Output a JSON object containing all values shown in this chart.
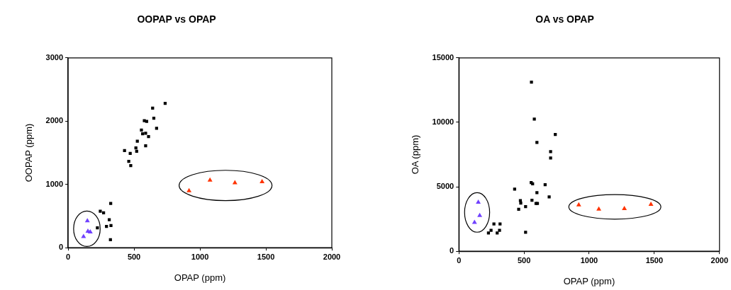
{
  "chart_data": [
    {
      "type": "scatter",
      "title": "OOPAP vs OPAP",
      "xlabel": "OPAP (ppm)",
      "ylabel": "OOPAP (ppm)",
      "xlim": [
        0,
        2000
      ],
      "xticks": [
        0,
        500,
        1000,
        1500,
        2000
      ],
      "ylim": [
        0,
        3000
      ],
      "yticks": [
        0,
        1000,
        2000,
        3000
      ],
      "grid": false,
      "legend": false,
      "series": [
        {
          "color": "#000000",
          "marker": "square",
          "x": [
            736,
            641,
            650,
            578,
            596,
            671,
            556,
            565,
            588,
            610,
            525,
            588,
            514,
            520,
            428,
            471,
            460,
            475,
            244,
            269,
            323,
            312,
            222,
            291,
            325,
            321
          ],
          "values": [
            2280,
            2205,
            2046,
            2008,
            1996,
            1887,
            1858,
            1800,
            1808,
            1757,
            1682,
            1611,
            1577,
            1523,
            1536,
            1490,
            1364,
            1297,
            577,
            552,
            699,
            443,
            314,
            335,
            351,
            126
          ]
        },
        {
          "color": "#7040ff",
          "marker": "triangle",
          "x": [
            146,
            150,
            168,
            117
          ],
          "values": [
            423,
            259,
            247,
            176
          ]
        },
        {
          "color": "#ff3300",
          "marker": "triangle",
          "x": [
            917,
            1076,
            1265,
            1471
          ],
          "values": [
            900,
            1067,
            1025,
            1042
          ]
        }
      ]
    },
    {
      "type": "scatter",
      "title": "OA vs OPAP",
      "xlabel": "OPAP (ppm)",
      "ylabel": "OA (ppm)",
      "xlim": [
        0,
        2000
      ],
      "xticks": [
        0,
        500,
        1000,
        1500,
        2000
      ],
      "ylim": [
        0,
        15000
      ],
      "yticks": [
        0,
        5000,
        10000,
        15000
      ],
      "grid": false,
      "legend": false,
      "series": [
        {
          "color": "#000000",
          "marker": "square",
          "x": [
            557,
            579,
            740,
            599,
            704,
            704,
            428,
            555,
            566,
            662,
            599,
            693,
            472,
            475,
            561,
            592,
            603,
            459,
            512,
            512,
            227,
            247,
            269,
            294,
            312,
            316
          ],
          "values": [
            13115,
            10246,
            9057,
            8443,
            7725,
            7234,
            4816,
            5328,
            5225,
            5164,
            4549,
            4221,
            3934,
            3730,
            3955,
            3709,
            3709,
            3258,
            3463,
            1475,
            1414,
            1619,
            2111,
            1414,
            1619,
            2111
          ]
        },
        {
          "color": "#7040ff",
          "marker": "triangle",
          "x": [
            149,
            160,
            120
          ],
          "values": [
            3791,
            2766,
            2234
          ]
        },
        {
          "color": "#ff3300",
          "marker": "triangle",
          "x": [
            920,
            1074,
            1270,
            1474
          ],
          "values": [
            3586,
            3258,
            3299,
            3627
          ]
        }
      ]
    }
  ]
}
